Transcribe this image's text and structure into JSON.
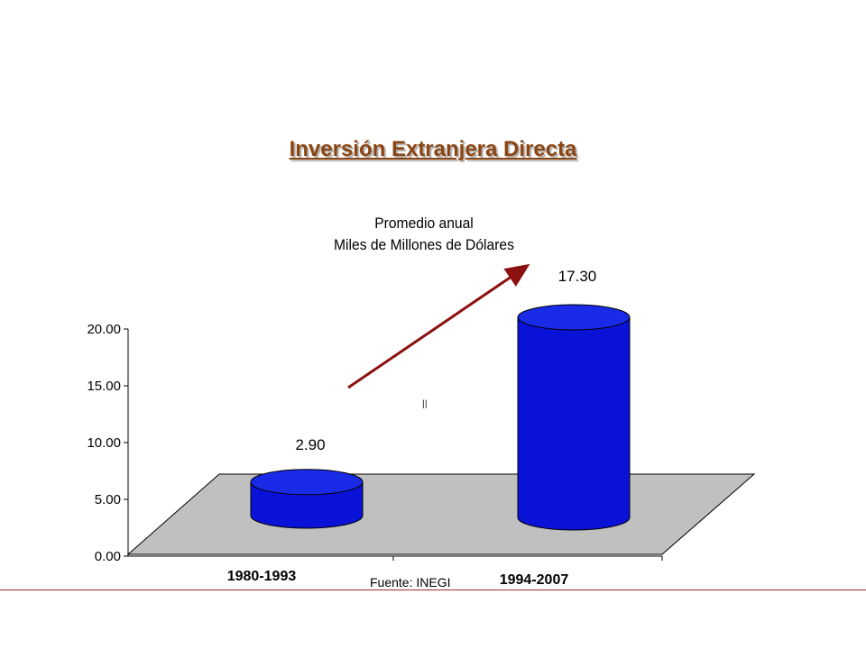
{
  "slide": {
    "title": "Inversión Extranjera Directa",
    "subtitle_line1": "Promedio anual",
    "subtitle_line2": "Miles de Millones de Dólares",
    "source": "Fuente: INEGI",
    "stray_mark": "ll"
  },
  "colors": {
    "title": "#8b4513",
    "bar": "#0a12d8",
    "bar_top": "#1a2be8",
    "floor": "#c0c0c0",
    "arrow": "#8b1010"
  },
  "chart_data": {
    "type": "bar",
    "title": "",
    "categories": [
      "1980-1993",
      "1994-2007"
    ],
    "values": [
      2.9,
      17.3
    ],
    "data_labels": [
      "2.90",
      "17.30"
    ],
    "ylim": [
      0,
      20
    ],
    "yticks": [
      "0.00",
      "5.00",
      "10.00",
      "15.00",
      "20.00"
    ],
    "ytick_values": [
      0,
      5,
      10,
      15,
      20
    ],
    "style": "3d-cylinder",
    "annotation": "upward trend arrow"
  }
}
